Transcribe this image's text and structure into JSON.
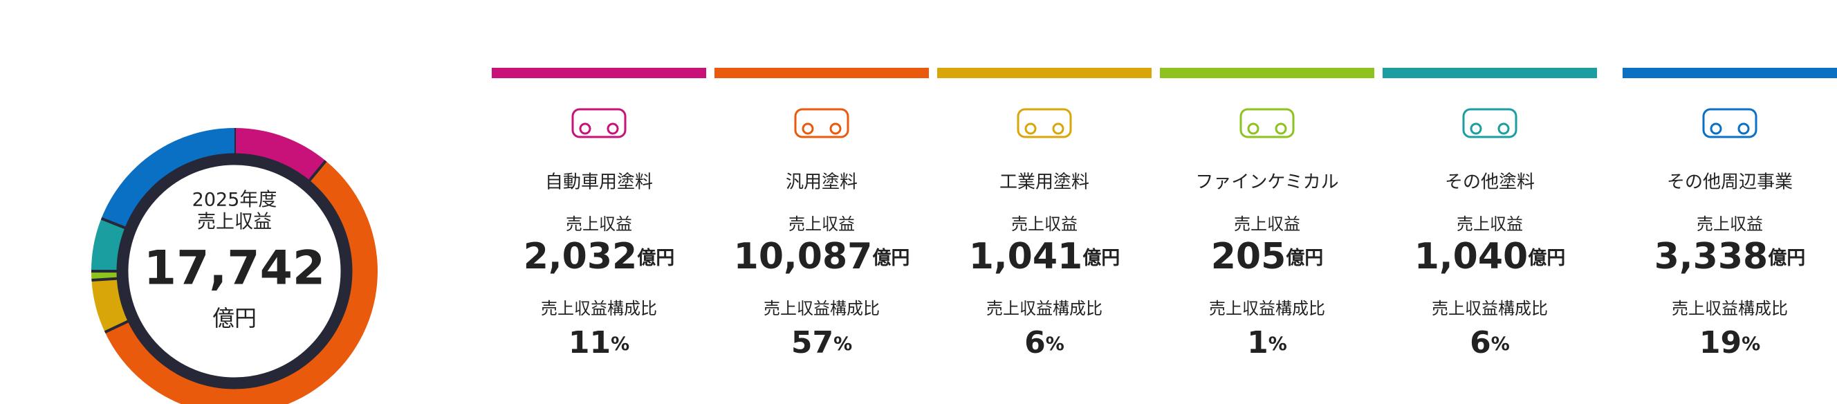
{
  "chart_data": {
    "type": "pie",
    "center_title": [
      "2025年度",
      "売上収益"
    ],
    "total": {
      "value": 17742,
      "label": "17,742"
    },
    "unit": "億円",
    "categories": [
      "自動車用塗料",
      "汎用塗料",
      "工業用塗料",
      "ファインケミカル",
      "その他塗料",
      "その他周辺事業"
    ],
    "colors": [
      "#c8127a",
      "#ea5a0c",
      "#d9a60a",
      "#8dc21f",
      "#1a9ea0",
      "#0a70c4"
    ],
    "revenue_label": "売上収益",
    "revenue": [
      {
        "value": 2032,
        "label": "2,032"
      },
      {
        "value": 10087,
        "label": "10,087"
      },
      {
        "value": 1041,
        "label": "1,041"
      },
      {
        "value": 205,
        "label": "205"
      },
      {
        "value": 1040,
        "label": "1,040"
      },
      {
        "value": 3338,
        "label": "3,338"
      }
    ],
    "share_label": "売上収益構成比",
    "values": [
      11,
      57,
      6,
      1,
      6,
      19
    ],
    "percent_unit": "%"
  }
}
